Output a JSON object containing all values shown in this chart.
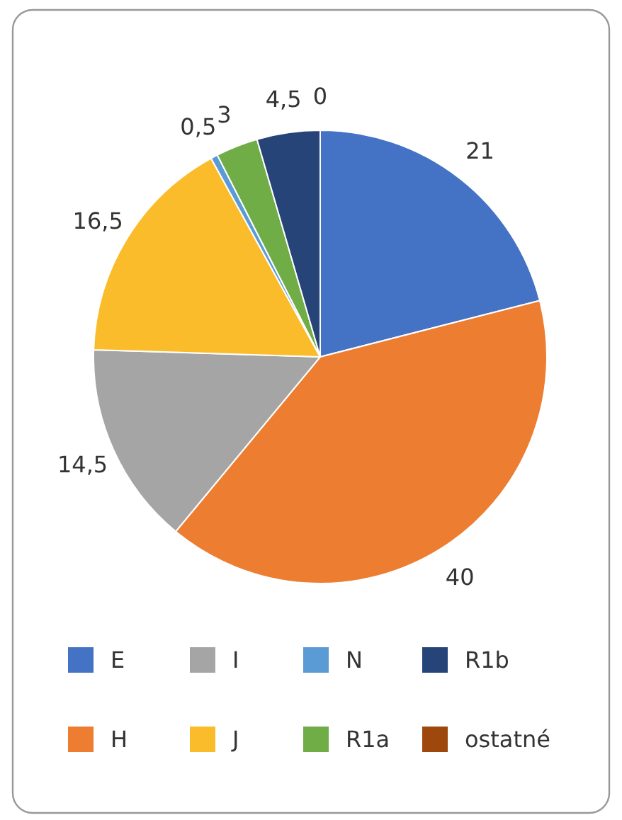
{
  "chart_data": {
    "type": "pie",
    "categories": [
      "E",
      "H",
      "I",
      "J",
      "N",
      "R1a",
      "R1b",
      "ostatné"
    ],
    "values": [
      21,
      40,
      14.5,
      16.5,
      0.5,
      3,
      4.5,
      0
    ],
    "value_labels": [
      "21",
      "40",
      "14,5",
      "16,5",
      "0,5",
      "3",
      "4,5",
      "0"
    ],
    "colors": [
      "#4472c4",
      "#ed7d31",
      "#a5a5a5",
      "#fbbc2c",
      "#5b9bd5",
      "#70ad47",
      "#264478",
      "#9e480e"
    ],
    "legend": "bottom"
  }
}
